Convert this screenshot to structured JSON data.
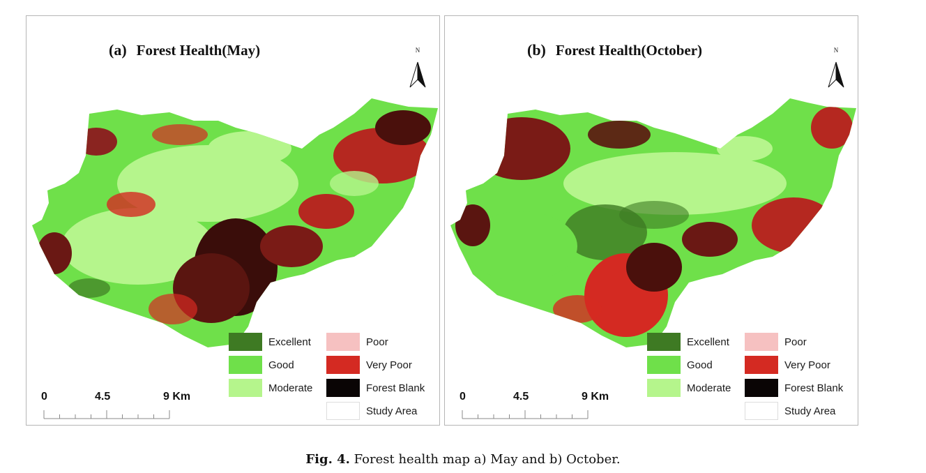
{
  "panels": [
    {
      "id": "a",
      "label": "(a)",
      "title": "Forest Health(May)",
      "north": "N"
    },
    {
      "id": "b",
      "label": "(b)",
      "title": "Forest Health(October)",
      "north": "N"
    }
  ],
  "legend": {
    "items": [
      {
        "label": "Excellent",
        "color": "#3e7a23"
      },
      {
        "label": "Good",
        "color": "#6fe04a"
      },
      {
        "label": "Moderate",
        "color": "#b5f58c"
      },
      {
        "label": "Poor",
        "color": "#f6c1c1"
      },
      {
        "label": "Very Poor",
        "color": "#d42a22"
      },
      {
        "label": "Forest Blank",
        "color": "#0a0505"
      },
      {
        "label": "Study Area",
        "color": "#ffffff"
      }
    ]
  },
  "scale": {
    "labels": [
      "0",
      "4.5",
      "9 Km"
    ]
  },
  "caption": {
    "fig_label": "Fig. 4.",
    "text": "Forest health map a) May and b) October."
  }
}
